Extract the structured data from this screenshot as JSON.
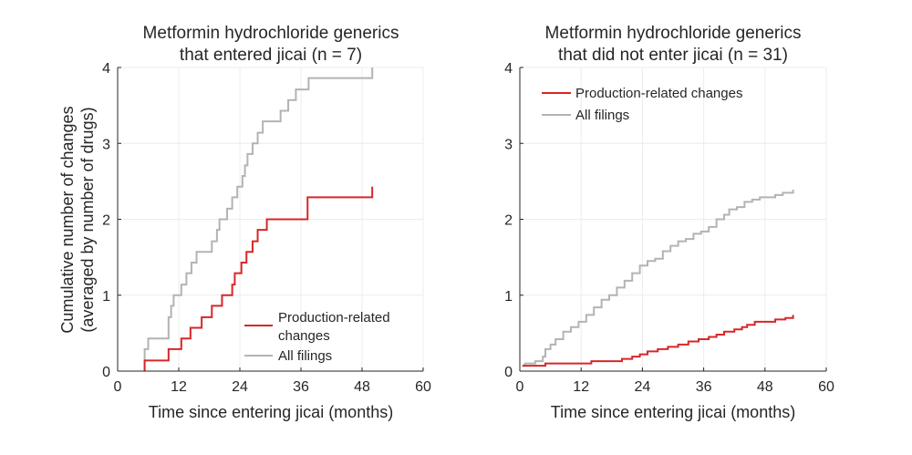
{
  "ylabel_line1": "Cumulative number of changes",
  "ylabel_line2": "(averaged by number of drugs)",
  "colors": {
    "production": "#d62728",
    "all": "#b3b3b3",
    "grid": "#ececec",
    "axis": "#262626"
  },
  "chart_data": [
    {
      "type": "line",
      "step": true,
      "title_line1": "Metformin hydrochloride generics",
      "title_line2": "that entered jicai (n = 7)",
      "xlabel": "Time since entering jicai (months)",
      "xlim": [
        0,
        60
      ],
      "ylim": [
        0,
        4
      ],
      "xticks": [
        "0",
        "12",
        "24",
        "36",
        "48",
        "60"
      ],
      "yticks": [
        "0",
        "1",
        "2",
        "3",
        "4"
      ],
      "legend_position": "bottom-right",
      "series": [
        {
          "name": "Production-related changes",
          "name_line1": "Production-related",
          "name_line2": "changes",
          "color": "#d62728",
          "x": [
            5.3,
            5.3,
            10,
            12.5,
            14.3,
            16.5,
            18.5,
            20.5,
            22.5,
            23,
            24.3,
            25.3,
            26.5,
            27.5,
            29.3,
            37.3,
            50
          ],
          "y": [
            0,
            0.14,
            0.29,
            0.43,
            0.57,
            0.71,
            0.86,
            1.0,
            1.14,
            1.29,
            1.43,
            1.57,
            1.71,
            1.86,
            2.0,
            2.29,
            2.43
          ]
        },
        {
          "name": "All filings",
          "color": "#b3b3b3",
          "x": [
            5.3,
            5.3,
            6,
            10,
            10.5,
            11,
            12.5,
            13.5,
            14.5,
            15.5,
            18.5,
            19.5,
            20,
            21.5,
            22.5,
            23.5,
            24.5,
            25,
            25.5,
            26.5,
            27.5,
            28.5,
            30,
            32,
            33.5,
            35,
            37.5,
            50
          ],
          "y": [
            0,
            0.29,
            0.43,
            0.71,
            0.86,
            1.0,
            1.14,
            1.29,
            1.43,
            1.57,
            1.71,
            1.86,
            2.0,
            2.14,
            2.29,
            2.43,
            2.57,
            2.71,
            2.86,
            3.0,
            3.14,
            3.29,
            3.29,
            3.43,
            3.57,
            3.71,
            3.86,
            4.0
          ]
        }
      ]
    },
    {
      "type": "line",
      "step": true,
      "title_line1": "Metformin hydrochloride generics",
      "title_line2": "that did not enter jicai (n = 31)",
      "xlabel": "Time since entering jicai (months)",
      "xlim": [
        0,
        60
      ],
      "ylim": [
        0,
        4
      ],
      "xticks": [
        "0",
        "12",
        "24",
        "36",
        "48",
        "60"
      ],
      "yticks": [
        "0",
        "1",
        "2",
        "3",
        "4"
      ],
      "legend_position": "top-left",
      "series": [
        {
          "name": "Production-related changes",
          "color": "#d62728",
          "x": [
            0.5,
            1.5,
            5,
            14,
            16,
            20,
            22,
            23.5,
            25,
            27,
            29,
            31,
            33,
            35,
            37,
            38.5,
            40,
            42,
            43.5,
            44.5,
            46,
            50,
            52,
            53.5
          ],
          "y": [
            0.07,
            0.07,
            0.1,
            0.13,
            0.13,
            0.16,
            0.19,
            0.22,
            0.26,
            0.29,
            0.32,
            0.35,
            0.39,
            0.42,
            0.45,
            0.48,
            0.52,
            0.55,
            0.58,
            0.61,
            0.65,
            0.68,
            0.7,
            0.74
          ]
        },
        {
          "name": "All filings",
          "color": "#b3b3b3",
          "x": [
            0.5,
            1,
            3,
            4.5,
            5,
            6,
            7,
            8.5,
            10,
            11.5,
            13,
            14.5,
            16,
            17.5,
            19,
            20.5,
            22,
            23.5,
            25,
            26.5,
            28,
            29.5,
            31,
            32.5,
            34,
            35.5,
            37,
            38.5,
            40,
            41,
            42.5,
            44,
            45.5,
            47,
            48.5,
            50,
            51.5,
            53,
            53.5
          ],
          "y": [
            0.07,
            0.1,
            0.13,
            0.19,
            0.29,
            0.35,
            0.42,
            0.52,
            0.58,
            0.65,
            0.74,
            0.84,
            0.94,
            1.0,
            1.1,
            1.19,
            1.29,
            1.39,
            1.45,
            1.48,
            1.58,
            1.65,
            1.71,
            1.74,
            1.81,
            1.84,
            1.9,
            2.0,
            2.06,
            2.13,
            2.16,
            2.23,
            2.26,
            2.29,
            2.29,
            2.32,
            2.35,
            2.35,
            2.39
          ]
        }
      ]
    }
  ]
}
